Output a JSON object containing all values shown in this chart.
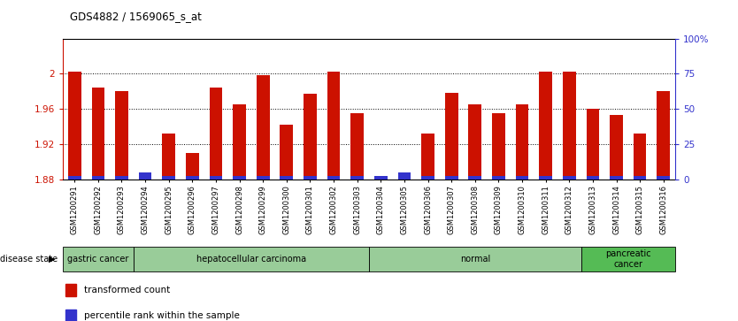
{
  "title": "GDS4882 / 1569065_s_at",
  "samples": [
    "GSM1200291",
    "GSM1200292",
    "GSM1200293",
    "GSM1200294",
    "GSM1200295",
    "GSM1200296",
    "GSM1200297",
    "GSM1200298",
    "GSM1200299",
    "GSM1200300",
    "GSM1200301",
    "GSM1200302",
    "GSM1200303",
    "GSM1200304",
    "GSM1200305",
    "GSM1200306",
    "GSM1200307",
    "GSM1200308",
    "GSM1200309",
    "GSM1200310",
    "GSM1200311",
    "GSM1200312",
    "GSM1200313",
    "GSM1200314",
    "GSM1200315",
    "GSM1200316"
  ],
  "red_values": [
    2.002,
    1.984,
    1.98,
    1.882,
    1.932,
    1.91,
    1.984,
    1.965,
    1.998,
    1.942,
    1.977,
    2.002,
    1.955,
    1.882,
    1.883,
    1.932,
    1.978,
    1.965,
    1.955,
    1.965,
    2.002,
    2.002,
    1.96,
    1.953,
    1.932,
    1.98
  ],
  "blue_heights": [
    0.004,
    0.004,
    0.004,
    0.008,
    0.004,
    0.004,
    0.004,
    0.004,
    0.004,
    0.004,
    0.004,
    0.004,
    0.004,
    0.004,
    0.008,
    0.004,
    0.004,
    0.004,
    0.004,
    0.004,
    0.004,
    0.004,
    0.004,
    0.004,
    0.004,
    0.004
  ],
  "ylim_left": [
    1.88,
    2.04
  ],
  "ylim_right": [
    0,
    100
  ],
  "yticks_left": [
    1.88,
    1.92,
    1.96,
    2.0
  ],
  "yticks_right": [
    0,
    25,
    50,
    75,
    100
  ],
  "ytick_labels_left": [
    "1.88",
    "1.92",
    "1.96",
    "2"
  ],
  "ytick_labels_right": [
    "0",
    "25",
    "50",
    "75",
    "100%"
  ],
  "base_value": 1.88,
  "red_color": "#cc1100",
  "blue_color": "#3333cc",
  "grid_values": [
    1.92,
    1.96,
    2.0
  ],
  "disease_groups": [
    {
      "label": "gastric cancer",
      "start": 0,
      "end": 3,
      "color": "#99cc99"
    },
    {
      "label": "hepatocellular carcinoma",
      "start": 3,
      "end": 13,
      "color": "#99cc99"
    },
    {
      "label": "normal",
      "start": 13,
      "end": 22,
      "color": "#99cc99"
    },
    {
      "label": "pancreatic\ncancer",
      "start": 22,
      "end": 26,
      "color": "#55bb55"
    }
  ],
  "bar_width": 0.55,
  "fig_width": 8.34,
  "fig_height": 3.63,
  "dpi": 100
}
